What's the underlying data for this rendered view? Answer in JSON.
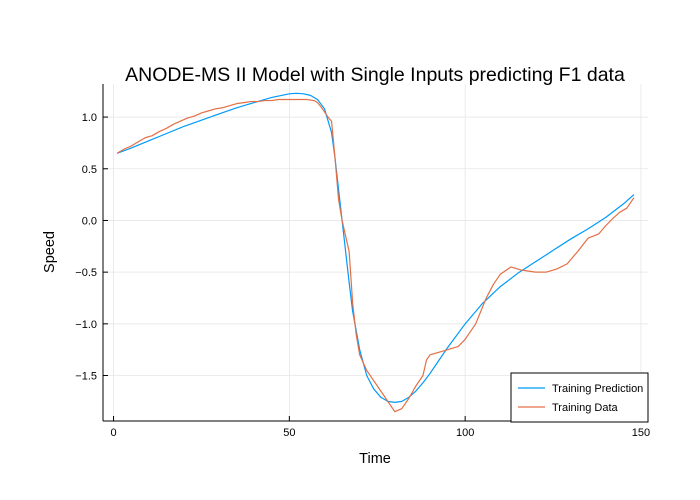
{
  "chart_data": {
    "type": "line",
    "title": "ANODE-MS II Model with Single Inputs predicting F1 data",
    "xlabel": "Time",
    "ylabel": "Speed",
    "xlim": [
      -3,
      152
    ],
    "ylim": [
      -1.94,
      1.32
    ],
    "xticks": [
      0,
      50,
      100,
      150
    ],
    "yticks": [
      -1.5,
      -1.0,
      -0.5,
      0.0,
      0.5,
      1.0
    ],
    "ytick_labels": [
      "−1.5",
      "−1.0",
      "−0.5",
      "0.0",
      "0.5",
      "1.0"
    ],
    "grid": true,
    "legend_position": "bottom-right",
    "series": [
      {
        "name": "Training Prediction",
        "color": "#009AFA",
        "x": [
          1,
          5,
          10,
          15,
          20,
          25,
          30,
          35,
          40,
          45,
          50,
          52,
          54,
          56,
          58,
          60,
          62,
          63,
          64,
          65,
          66,
          67,
          68,
          70,
          72,
          74,
          76,
          78,
          80,
          82,
          84,
          86,
          88,
          90,
          92,
          95,
          100,
          105,
          110,
          115,
          120,
          125,
          130,
          135,
          140,
          145,
          148
        ],
        "y": [
          0.65,
          0.7,
          0.77,
          0.84,
          0.91,
          0.97,
          1.03,
          1.09,
          1.14,
          1.19,
          1.225,
          1.23,
          1.225,
          1.21,
          1.17,
          1.08,
          0.85,
          0.6,
          0.3,
          0.0,
          -0.3,
          -0.6,
          -0.88,
          -1.25,
          -1.5,
          -1.63,
          -1.71,
          -1.75,
          -1.76,
          -1.75,
          -1.71,
          -1.65,
          -1.57,
          -1.48,
          -1.38,
          -1.23,
          -1.0,
          -0.8,
          -0.64,
          -0.51,
          -0.4,
          -0.29,
          -0.18,
          -0.08,
          0.03,
          0.16,
          0.25
        ]
      },
      {
        "name": "Training Data",
        "color": "#E26F46",
        "x": [
          1,
          3,
          5,
          7,
          9,
          11,
          13,
          15,
          17,
          19,
          21,
          23,
          25,
          27,
          29,
          31,
          33,
          35,
          37,
          39,
          41,
          43,
          45,
          47,
          49,
          51,
          53,
          55,
          57,
          58,
          59,
          60,
          61,
          62,
          63,
          64,
          65,
          66,
          67,
          68,
          69,
          70,
          72,
          74,
          76,
          78,
          80,
          82,
          84,
          86,
          88,
          89,
          90,
          92,
          95,
          98,
          100,
          103,
          106,
          108,
          110,
          113,
          116,
          118,
          120,
          123,
          126,
          129,
          132,
          135,
          138,
          140,
          142,
          144,
          146,
          148
        ],
        "y": [
          0.65,
          0.69,
          0.72,
          0.76,
          0.8,
          0.82,
          0.86,
          0.89,
          0.93,
          0.96,
          0.99,
          1.01,
          1.04,
          1.06,
          1.08,
          1.09,
          1.11,
          1.13,
          1.14,
          1.15,
          1.15,
          1.16,
          1.16,
          1.17,
          1.17,
          1.17,
          1.17,
          1.17,
          1.16,
          1.14,
          1.1,
          1.05,
          1.0,
          0.96,
          0.6,
          0.2,
          0.0,
          -0.15,
          -0.3,
          -0.8,
          -1.1,
          -1.3,
          -1.45,
          -1.55,
          -1.65,
          -1.75,
          -1.85,
          -1.82,
          -1.72,
          -1.6,
          -1.5,
          -1.35,
          -1.3,
          -1.28,
          -1.25,
          -1.22,
          -1.15,
          -1.0,
          -0.75,
          -0.62,
          -0.52,
          -0.45,
          -0.48,
          -0.49,
          -0.5,
          -0.5,
          -0.47,
          -0.42,
          -0.3,
          -0.17,
          -0.13,
          -0.05,
          0.02,
          0.08,
          0.12,
          0.22
        ]
      }
    ]
  }
}
